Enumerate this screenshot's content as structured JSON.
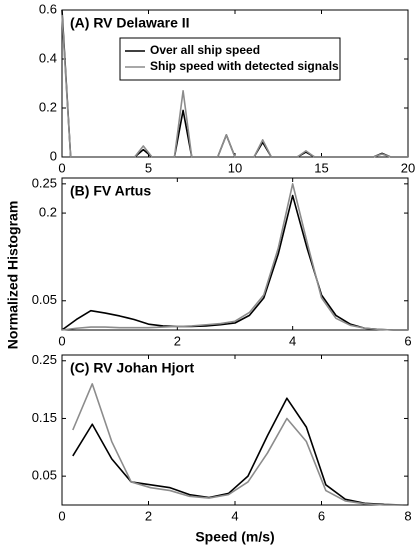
{
  "chart_data": [
    {
      "type": "line",
      "title": "(A) RV Delaware II",
      "x": [
        0,
        0.5,
        1.5,
        4.2,
        4.7,
        5.2,
        6.5,
        7.0,
        7.5,
        9.0,
        9.5,
        10.0,
        11.1,
        11.6,
        12.1,
        13.6,
        14.1,
        14.6,
        18.0,
        18.5,
        19.0,
        20
      ],
      "series": [
        {
          "name": "Over all ship speed",
          "color": "#000000",
          "values": [
            0.6,
            0,
            0,
            0,
            0.03,
            0,
            0,
            0.19,
            0,
            0,
            0.09,
            0,
            0,
            0.06,
            0,
            0,
            0.02,
            0,
            0,
            0.015,
            0,
            0
          ]
        },
        {
          "name": "Ship speed with detected signals",
          "color": "#8c8c8c",
          "values": [
            0.58,
            0,
            0,
            0,
            0.045,
            0,
            0,
            0.27,
            0,
            0,
            0.09,
            0,
            0,
            0.07,
            0,
            0,
            0.025,
            0,
            0,
            0.012,
            0,
            0
          ]
        }
      ],
      "xlim": [
        0,
        20
      ],
      "xticks": [
        0,
        5,
        10,
        15,
        20
      ],
      "ylim": [
        0,
        0.6
      ],
      "yticks": [
        0,
        0.2,
        0.4,
        0.6
      ],
      "legend": "top-right"
    },
    {
      "type": "line",
      "title": "(B) FV Artus",
      "ylabel": "Normalized Histogram",
      "x": [
        0,
        0.25,
        0.5,
        0.75,
        1,
        1.25,
        1.5,
        1.75,
        2,
        2.25,
        2.5,
        2.75,
        3,
        3.25,
        3.5,
        3.75,
        4,
        4.25,
        4.5,
        4.75,
        5,
        5.25,
        5.5,
        5.75,
        6
      ],
      "series": [
        {
          "color": "#000000",
          "values": [
            0,
            0.018,
            0.033,
            0.029,
            0.024,
            0.018,
            0.01,
            0.007,
            0.006,
            0.006,
            0.007,
            0.009,
            0.012,
            0.025,
            0.055,
            0.13,
            0.23,
            0.14,
            0.06,
            0.025,
            0.01,
            0.003,
            0.001,
            0,
            0
          ]
        },
        {
          "color": "#8c8c8c",
          "values": [
            0,
            0.003,
            0.005,
            0.005,
            0.004,
            0.004,
            0.004,
            0.005,
            0.006,
            0.007,
            0.009,
            0.011,
            0.015,
            0.03,
            0.06,
            0.14,
            0.25,
            0.15,
            0.055,
            0.02,
            0.008,
            0.003,
            0.001,
            0,
            0
          ]
        }
      ],
      "xlim": [
        0,
        6
      ],
      "xticks": [
        0,
        2,
        4,
        6
      ],
      "ylim": [
        0,
        0.26
      ],
      "yticks": [
        0.05,
        0.2,
        0.25
      ]
    },
    {
      "type": "line",
      "title": "(C) RV Johan Hjort",
      "xlabel": "Speed (m/s)",
      "x": [
        0.25,
        0.7,
        1.15,
        1.6,
        2.05,
        2.5,
        2.95,
        3.4,
        3.85,
        4.3,
        4.75,
        5.2,
        5.65,
        6.1,
        6.55,
        7.0,
        7.45,
        7.9
      ],
      "series": [
        {
          "color": "#000000",
          "values": [
            0.085,
            0.14,
            0.08,
            0.04,
            0.035,
            0.03,
            0.018,
            0.013,
            0.02,
            0.05,
            0.12,
            0.185,
            0.135,
            0.035,
            0.01,
            0.003,
            0.001,
            0
          ]
        },
        {
          "color": "#8c8c8c",
          "values": [
            0.13,
            0.21,
            0.11,
            0.04,
            0.03,
            0.025,
            0.015,
            0.012,
            0.018,
            0.04,
            0.09,
            0.15,
            0.11,
            0.025,
            0.007,
            0.002,
            0,
            0
          ]
        }
      ],
      "xlim": [
        0,
        8
      ],
      "xticks": [
        0,
        2,
        4,
        6,
        8
      ],
      "ylim": [
        0,
        0.26
      ],
      "yticks": [
        0.05,
        0.15,
        0.25
      ]
    }
  ]
}
